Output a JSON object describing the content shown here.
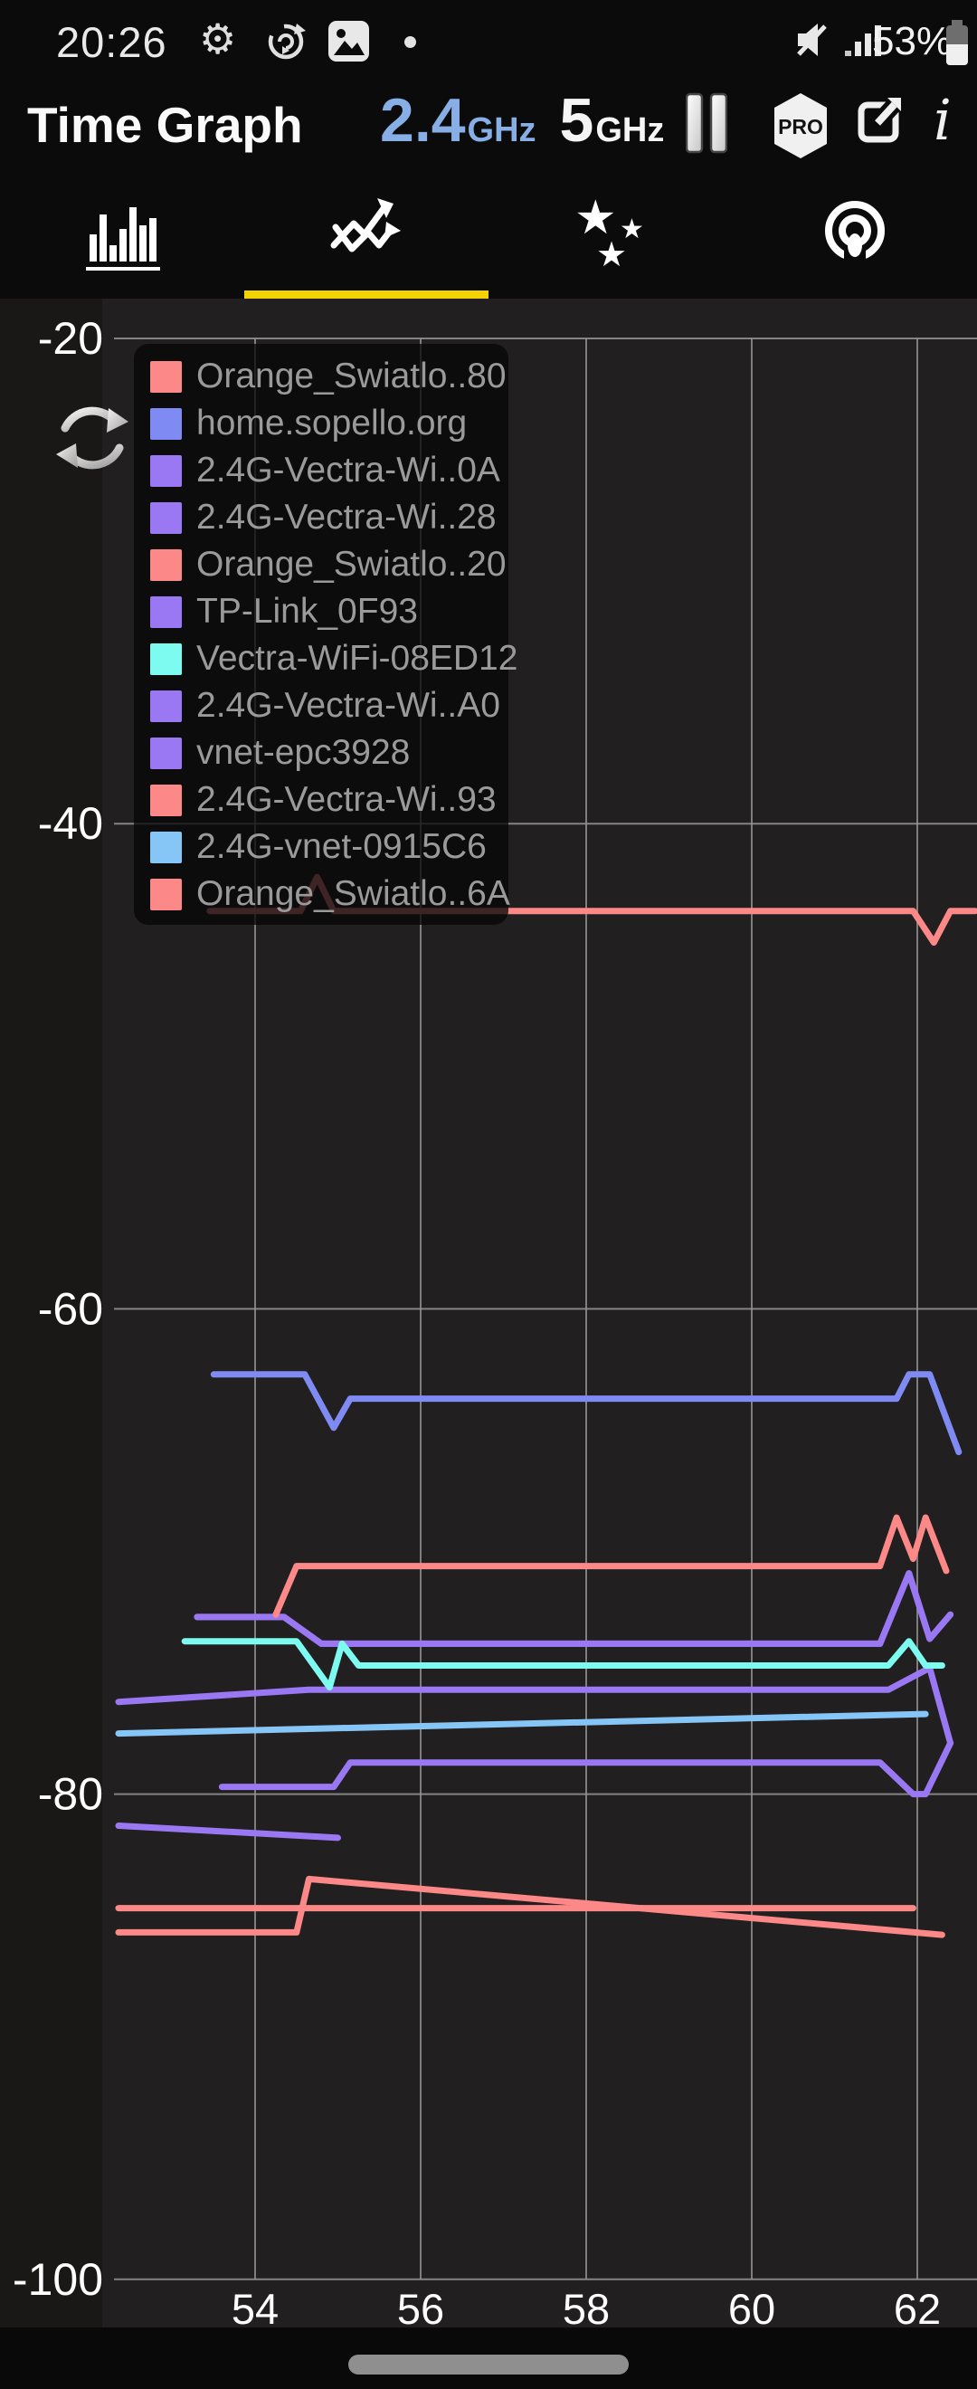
{
  "status_bar": {
    "time": "20:26",
    "battery_percent": "53%"
  },
  "header": {
    "title": "Time Graph",
    "band_primary": "2.4",
    "band_primary_unit": "GHz",
    "band_secondary": "5",
    "band_secondary_unit": "GHz",
    "pro_label": "PRO",
    "info_label": "i",
    "accent_blue": "#88afe5"
  },
  "tabs": {
    "active_index": 1,
    "underline_color": "#f4d303",
    "items": [
      {
        "name": "channel-graph"
      },
      {
        "name": "time-graph"
      },
      {
        "name": "channel-rating"
      },
      {
        "name": "access-points"
      }
    ]
  },
  "chart_data": {
    "type": "line",
    "title": "",
    "xlabel": "",
    "ylabel": "",
    "x_unit": "s",
    "y_unit": "dBm",
    "grid": true,
    "legend_position": "top-left",
    "x_ticks": [
      54,
      56,
      58,
      60,
      62
    ],
    "y_ticks": [
      -20,
      -40,
      -60,
      -80,
      -100
    ],
    "x_range": [
      52.3,
      62.7
    ],
    "y_range": [
      -102,
      -18.4
    ],
    "grid_color": "#969696",
    "series": [
      {
        "name": "Orange_Swiatlo..80",
        "color": "#fc8888",
        "points": [
          [
            53.45,
            -43.6
          ],
          [
            54.55,
            -43.6
          ],
          [
            54.75,
            -42.2
          ],
          [
            54.95,
            -43.6
          ],
          [
            61.95,
            -43.6
          ],
          [
            62.2,
            -44.9
          ],
          [
            62.4,
            -43.6
          ],
          [
            62.7,
            -43.6
          ]
        ]
      },
      {
        "name": "home.sopello.org",
        "color": "#7f8bf2",
        "points": [
          [
            53.5,
            -62.7
          ],
          [
            54.6,
            -62.7
          ],
          [
            54.95,
            -64.9
          ],
          [
            55.15,
            -63.7
          ],
          [
            61.75,
            -63.7
          ],
          [
            61.9,
            -62.7
          ],
          [
            62.15,
            -62.7
          ],
          [
            62.5,
            -65.9
          ]
        ]
      },
      {
        "name": "2.4G-Vectra-Wi..0A",
        "color": "#9b78f3",
        "points": [
          [
            53.3,
            -72.7
          ],
          [
            54.35,
            -72.7
          ],
          [
            54.8,
            -73.8
          ],
          [
            61.55,
            -73.8
          ],
          [
            61.9,
            -70.9
          ],
          [
            62.15,
            -73.6
          ],
          [
            62.4,
            -72.6
          ]
        ]
      },
      {
        "name": "2.4G-Vectra-Wi..28",
        "color": "#9b78f3",
        "points": [
          [
            53.3,
            -72.7
          ],
          [
            54.35,
            -72.7
          ],
          [
            54.8,
            -73.8
          ],
          [
            61.55,
            -73.8
          ],
          [
            61.9,
            -70.9
          ],
          [
            62.15,
            -73.6
          ],
          [
            62.4,
            -72.6
          ]
        ]
      },
      {
        "name": "Orange_Swiatlo..20",
        "color": "#fc8888",
        "points": [
          [
            54.25,
            -72.6
          ],
          [
            54.5,
            -70.6
          ],
          [
            61.55,
            -70.6
          ],
          [
            61.75,
            -68.6
          ],
          [
            61.95,
            -70.3
          ],
          [
            62.1,
            -68.6
          ],
          [
            62.35,
            -70.8
          ]
        ]
      },
      {
        "name": "TP-Link_0F93",
        "color": "#9b78f3",
        "points": [
          [
            52.35,
            -76.2
          ],
          [
            54.65,
            -75.7
          ],
          [
            61.65,
            -75.7
          ],
          [
            62.15,
            -74.8
          ],
          [
            62.4,
            -77.9
          ]
        ]
      },
      {
        "name": "Vectra-WiFi-08ED12",
        "color": "#7dfbf0",
        "points": [
          [
            53.15,
            -73.7
          ],
          [
            54.5,
            -73.7
          ],
          [
            54.9,
            -75.6
          ],
          [
            55.05,
            -73.8
          ],
          [
            55.25,
            -74.7
          ],
          [
            61.65,
            -74.7
          ],
          [
            61.9,
            -73.7
          ],
          [
            62.1,
            -74.7
          ],
          [
            62.3,
            -74.7
          ]
        ]
      },
      {
        "name": "2.4G-Vectra-Wi..A0",
        "color": "#9b78f3",
        "points": [
          [
            53.6,
            -79.7
          ],
          [
            54.95,
            -79.7
          ],
          [
            55.15,
            -78.7
          ],
          [
            61.55,
            -78.7
          ],
          [
            61.95,
            -80.0
          ],
          [
            62.1,
            -80.0
          ],
          [
            62.4,
            -77.9
          ]
        ]
      },
      {
        "name": "vnet-epc3928",
        "color": "#9b78f3",
        "points": [
          [
            52.35,
            -81.3
          ],
          [
            55.0,
            -81.8
          ]
        ]
      },
      {
        "name": "2.4G-Vectra-Wi..93",
        "color": "#fc8888",
        "points": [
          [
            52.35,
            -84.7
          ],
          [
            61.95,
            -84.7
          ]
        ]
      },
      {
        "name": "2.4G-vnet-0915C6",
        "color": "#85c6f7",
        "points": [
          [
            52.35,
            -77.5
          ],
          [
            62.1,
            -76.7
          ]
        ]
      },
      {
        "name": "Orange_Swiatlo..6A",
        "color": "#fc8888",
        "points": [
          [
            52.35,
            -85.7
          ],
          [
            54.5,
            -85.7
          ],
          [
            54.65,
            -83.5
          ],
          [
            62.3,
            -85.8
          ]
        ]
      }
    ]
  }
}
